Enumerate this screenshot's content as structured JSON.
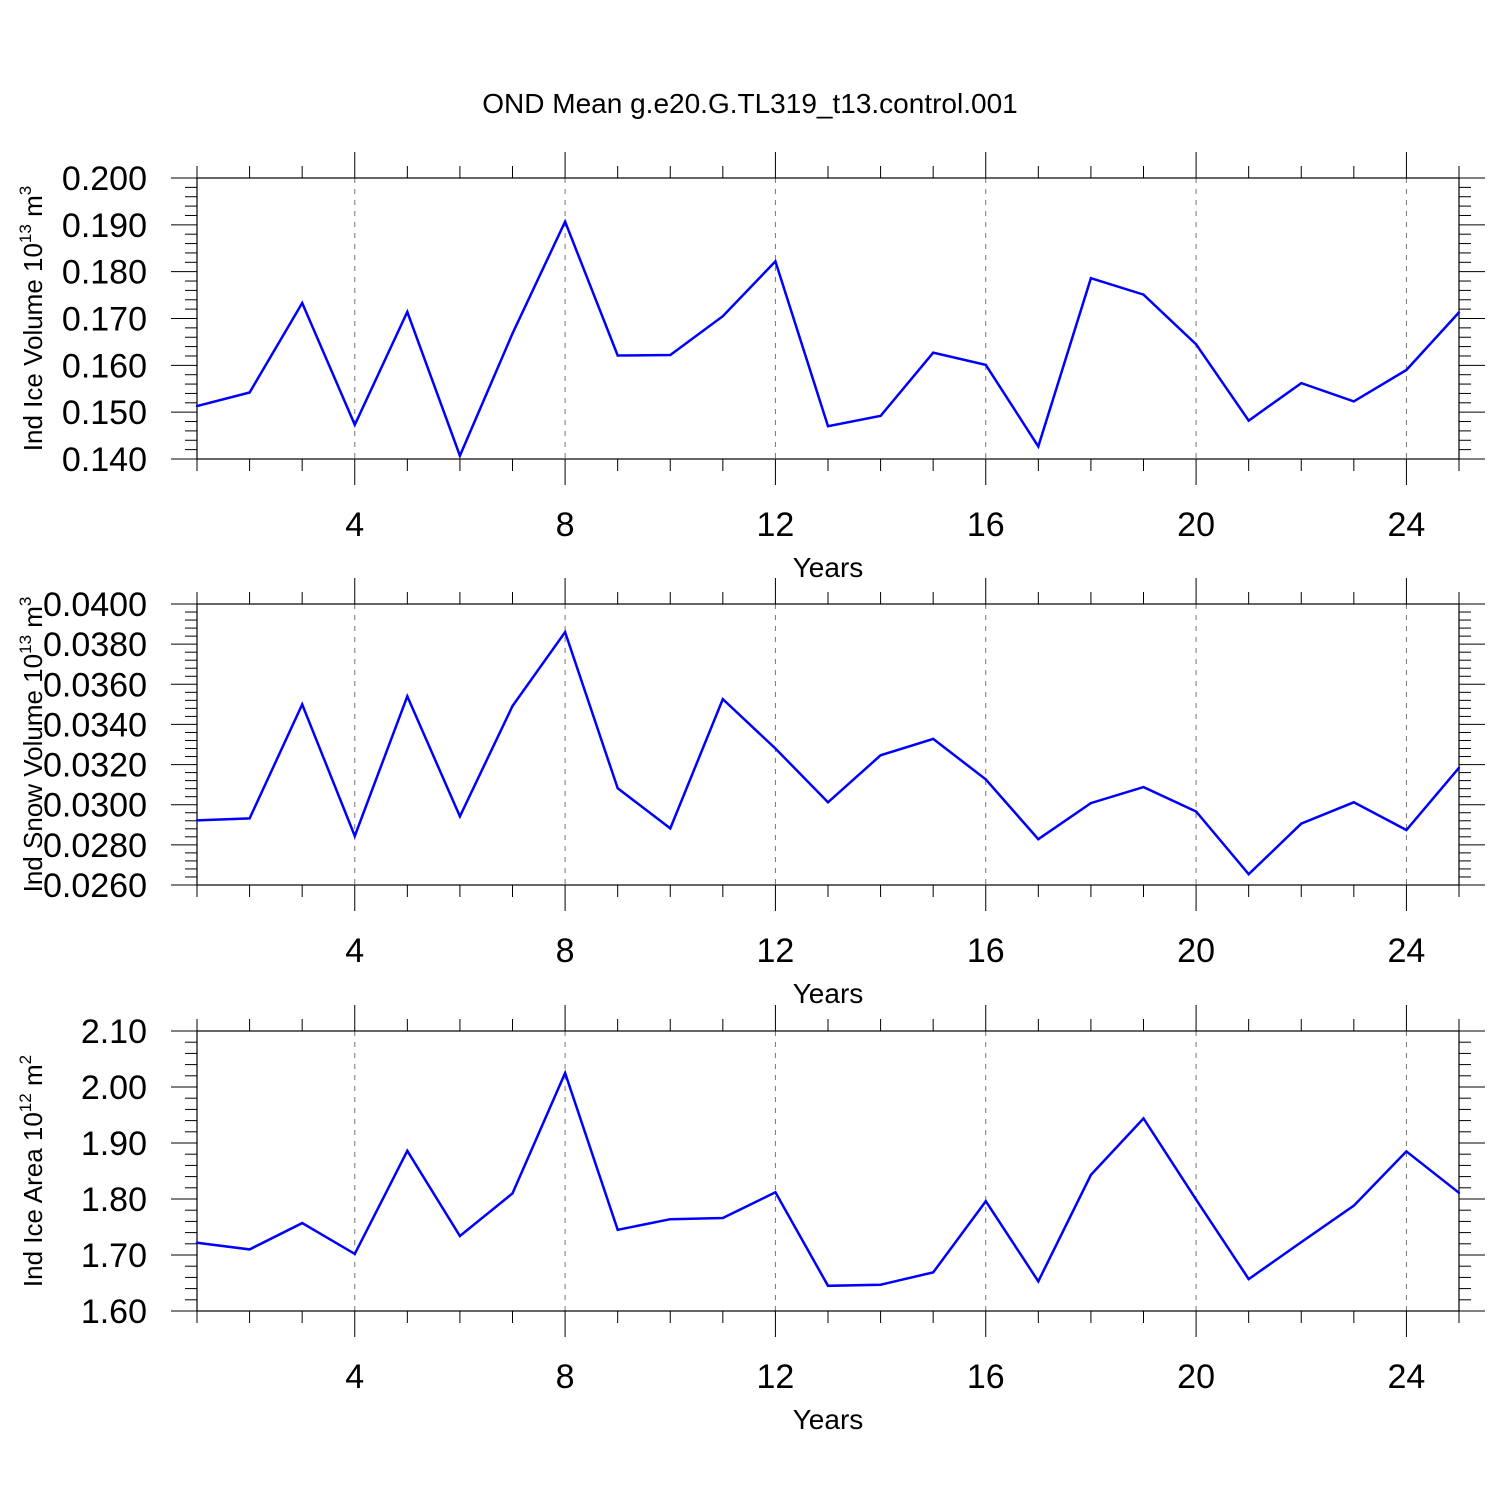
{
  "figure": {
    "title": "OND Mean g.e20.G.TL319_t13.control.001"
  },
  "chart_data": [
    {
      "type": "line",
      "title": "",
      "xlabel": "Years",
      "ylabel_main": "Ind Ice Volume 10",
      "ylabel_sup": "13",
      "ylabel_unit": " m",
      "ylabel_unit_sup": "3",
      "xlim": [
        1,
        25
      ],
      "ylim": [
        0.14,
        0.2
      ],
      "xticks": [
        4,
        8,
        12,
        16,
        20,
        24
      ],
      "xtick_labels": [
        "4",
        "8",
        "12",
        "16",
        "20",
        "24"
      ],
      "yticks": [
        0.14,
        0.15,
        0.16,
        0.17,
        0.18,
        0.19,
        0.2
      ],
      "ytick_labels": [
        "0.140",
        "0.150",
        "0.160",
        "0.170",
        "0.180",
        "0.190",
        "0.200"
      ],
      "grid": "dashed vertical at major x ticks",
      "line_color": "#0000ff",
      "x": [
        1,
        2,
        3,
        4,
        5,
        6,
        7,
        8,
        9,
        10,
        11,
        12,
        13,
        14,
        15,
        16,
        17,
        18,
        19,
        20,
        21,
        22,
        23,
        24,
        25
      ],
      "values": [
        0.1513,
        0.1542,
        0.1733,
        0.1473,
        0.1714,
        0.1407,
        0.1668,
        0.1907,
        0.1621,
        0.1622,
        0.1705,
        0.1822,
        0.147,
        0.1492,
        0.1627,
        0.1601,
        0.1427,
        0.1786,
        0.1751,
        0.1645,
        0.1482,
        0.1562,
        0.1523,
        0.159,
        0.1713
      ]
    },
    {
      "type": "line",
      "title": "",
      "xlabel": "Years",
      "ylabel_main": "Ind Snow Volume 10",
      "ylabel_sup": "13",
      "ylabel_unit": " m",
      "ylabel_unit_sup": "3",
      "xlim": [
        1,
        25
      ],
      "ylim": [
        0.026,
        0.04
      ],
      "xticks": [
        4,
        8,
        12,
        16,
        20,
        24
      ],
      "xtick_labels": [
        "4",
        "8",
        "12",
        "16",
        "20",
        "24"
      ],
      "yticks": [
        0.026,
        0.028,
        0.03,
        0.032,
        0.034,
        0.036,
        0.038,
        0.04
      ],
      "ytick_labels": [
        "0.0260",
        "0.0280",
        "0.0300",
        "0.0320",
        "0.0340",
        "0.0360",
        "0.0380",
        "0.0400"
      ],
      "grid": "dashed vertical at major x ticks",
      "line_color": "#0000ff",
      "x": [
        1,
        2,
        3,
        4,
        5,
        6,
        7,
        8,
        9,
        10,
        11,
        12,
        13,
        14,
        15,
        16,
        17,
        18,
        19,
        20,
        21,
        22,
        23,
        24,
        25
      ],
      "values": [
        0.02922,
        0.02932,
        0.035,
        0.02844,
        0.0354,
        0.02942,
        0.03492,
        0.0386,
        0.03082,
        0.02882,
        0.03526,
        0.0328,
        0.03012,
        0.03246,
        0.03328,
        0.03126,
        0.02828,
        0.03008,
        0.03088,
        0.02966,
        0.02654,
        0.02906,
        0.03012,
        0.02874,
        0.03184
      ]
    },
    {
      "type": "line",
      "title": "",
      "xlabel": "Years",
      "ylabel_main": "Ind Ice Area 10",
      "ylabel_sup": "12",
      "ylabel_unit": " m",
      "ylabel_unit_sup": "2",
      "xlim": [
        1,
        25
      ],
      "ylim": [
        1.6,
        2.1
      ],
      "xticks": [
        4,
        8,
        12,
        16,
        20,
        24
      ],
      "xtick_labels": [
        "4",
        "8",
        "12",
        "16",
        "20",
        "24"
      ],
      "yticks": [
        1.6,
        1.7,
        1.8,
        1.9,
        2.0,
        2.1
      ],
      "ytick_labels": [
        "1.60",
        "1.70",
        "1.80",
        "1.90",
        "2.00",
        "2.10"
      ],
      "grid": "dashed vertical at major x ticks",
      "line_color": "#0000ff",
      "x": [
        1,
        2,
        3,
        4,
        5,
        6,
        7,
        8,
        9,
        10,
        11,
        12,
        13,
        14,
        15,
        16,
        17,
        18,
        19,
        20,
        21,
        22,
        23,
        24,
        25
      ],
      "values": [
        1.722,
        1.71,
        1.757,
        1.702,
        1.886,
        1.734,
        1.81,
        2.025,
        1.745,
        1.764,
        1.766,
        1.812,
        1.645,
        1.647,
        1.669,
        1.796,
        1.653,
        1.843,
        1.944,
        1.799,
        1.657,
        1.723,
        1.788,
        1.885,
        1.811
      ]
    }
  ]
}
